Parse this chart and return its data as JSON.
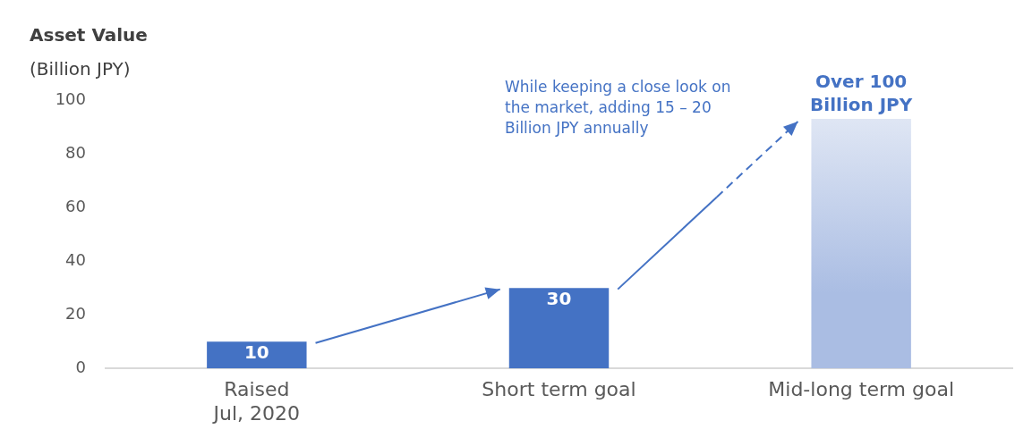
{
  "chart_data": {
    "type": "bar",
    "ylabel": "Asset Value\n(Billion JPY)",
    "categories": [
      "Raised\nJul, 2020",
      "Short term goal",
      "Mid-long term goal"
    ],
    "values": [
      10,
      30,
      93
    ],
    "colors": [
      "#4472c4",
      "#4472c4",
      "#aabde3"
    ],
    "value_labels": [
      "10",
      "30",
      "Over 100 Billion JPY"
    ],
    "ylim": [
      0,
      100
    ],
    "yticks": [
      0,
      20,
      40,
      60,
      80,
      100
    ],
    "grid": false,
    "legend": false,
    "annotations": [
      "While keeping a close look on the market, adding 15 – 20 Billion JPY annually"
    ]
  }
}
